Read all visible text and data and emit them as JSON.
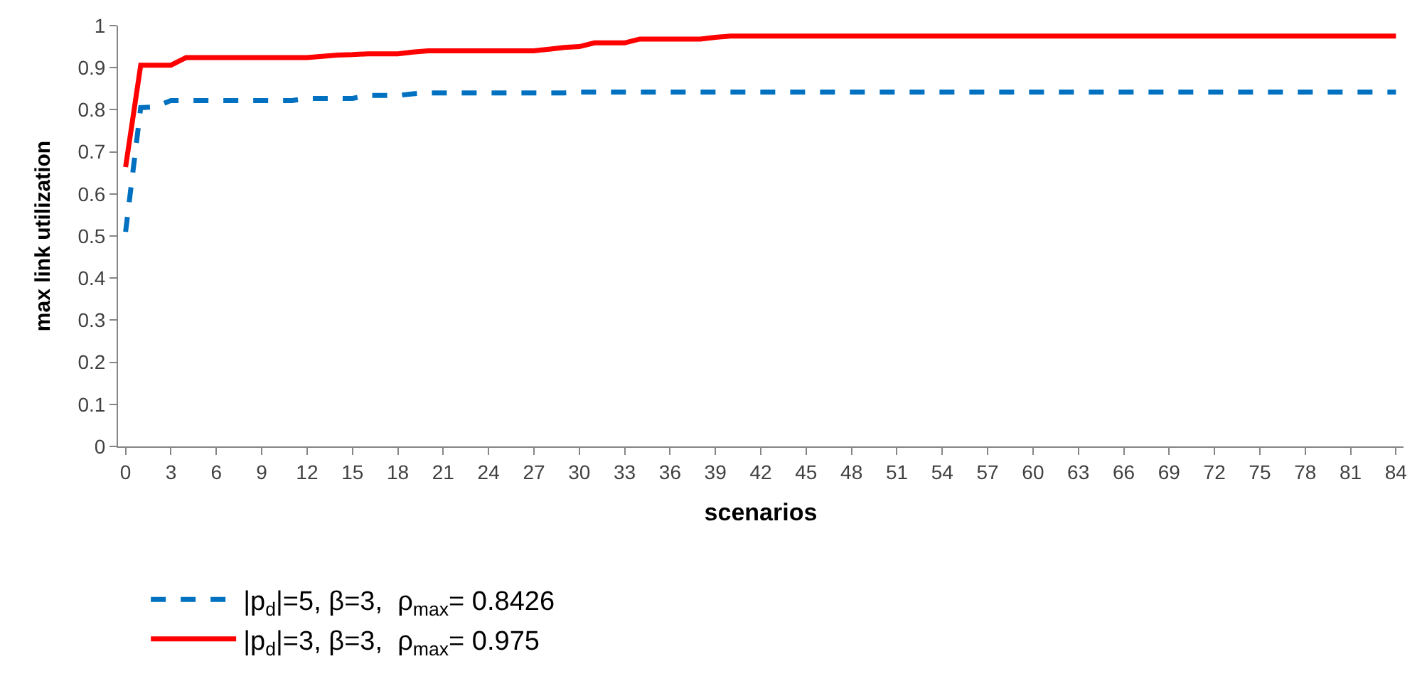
{
  "chart_data": {
    "type": "line",
    "xlabel": "scenarios",
    "ylabel": "max link utilization",
    "x": [
      0,
      1,
      2,
      3,
      4,
      5,
      6,
      7,
      8,
      9,
      10,
      11,
      12,
      13,
      14,
      15,
      16,
      17,
      18,
      19,
      20,
      21,
      22,
      23,
      24,
      25,
      26,
      27,
      28,
      29,
      30,
      31,
      32,
      33,
      34,
      35,
      36,
      37,
      38,
      39,
      40,
      41,
      42,
      43,
      44,
      45,
      46,
      47,
      48,
      49,
      50,
      51,
      52,
      53,
      54,
      55,
      56,
      57,
      58,
      59,
      60,
      61,
      62,
      63,
      64,
      65,
      66,
      67,
      68,
      69,
      70,
      71,
      72,
      73,
      74,
      75,
      76,
      77,
      78,
      79,
      80,
      81,
      82,
      83,
      84
    ],
    "xlim": [
      -0.5,
      84.5
    ],
    "xticks": [
      0,
      3,
      6,
      9,
      12,
      15,
      18,
      21,
      24,
      27,
      30,
      33,
      36,
      39,
      42,
      45,
      48,
      51,
      54,
      57,
      60,
      63,
      66,
      69,
      72,
      75,
      78,
      81,
      84
    ],
    "ylim": [
      0,
      1
    ],
    "yticks": [
      0,
      0.1,
      0.2,
      0.3,
      0.4,
      0.5,
      0.6,
      0.7,
      0.8,
      0.9,
      1
    ],
    "legend": "bottom",
    "marker": "none",
    "series": [
      {
        "name": "|p$_{d}$|=5, β=3,  ρ$_{max}$= 0.8426",
        "color": "#0070c0",
        "line_style": "dashed",
        "values": [
          0.51,
          0.805,
          0.807,
          0.822,
          0.822,
          0.822,
          0.822,
          0.822,
          0.822,
          0.822,
          0.822,
          0.822,
          0.827,
          0.827,
          0.827,
          0.827,
          0.834,
          0.834,
          0.834,
          0.838,
          0.84,
          0.84,
          0.84,
          0.84,
          0.84,
          0.84,
          0.84,
          0.84,
          0.84,
          0.84,
          0.842,
          0.842,
          0.842,
          0.842,
          0.842,
          0.842,
          0.842,
          0.842,
          0.842,
          0.842,
          0.842,
          0.842,
          0.842,
          0.842,
          0.842,
          0.842,
          0.842,
          0.842,
          0.842,
          0.842,
          0.842,
          0.842,
          0.842,
          0.842,
          0.842,
          0.842,
          0.842,
          0.842,
          0.842,
          0.842,
          0.842,
          0.842,
          0.842,
          0.842,
          0.842,
          0.842,
          0.842,
          0.842,
          0.842,
          0.842,
          0.842,
          0.842,
          0.842,
          0.842,
          0.842,
          0.842,
          0.842,
          0.842,
          0.842,
          0.842,
          0.842,
          0.842,
          0.842,
          0.842,
          0.842
        ]
      },
      {
        "name": "|p$_{d}$|=3, β=3,  ρ$_{max}$= 0.975",
        "color": "#ff0000",
        "line_style": "solid",
        "values": [
          0.664,
          0.906,
          0.906,
          0.906,
          0.924,
          0.924,
          0.924,
          0.924,
          0.924,
          0.924,
          0.924,
          0.924,
          0.924,
          0.927,
          0.93,
          0.931,
          0.933,
          0.933,
          0.933,
          0.937,
          0.94,
          0.94,
          0.94,
          0.94,
          0.94,
          0.94,
          0.94,
          0.94,
          0.944,
          0.948,
          0.95,
          0.959,
          0.959,
          0.959,
          0.968,
          0.968,
          0.968,
          0.968,
          0.968,
          0.972,
          0.975,
          0.975,
          0.975,
          0.975,
          0.975,
          0.975,
          0.975,
          0.975,
          0.975,
          0.975,
          0.975,
          0.975,
          0.975,
          0.975,
          0.975,
          0.975,
          0.975,
          0.975,
          0.975,
          0.975,
          0.975,
          0.975,
          0.975,
          0.975,
          0.975,
          0.975,
          0.975,
          0.975,
          0.975,
          0.975,
          0.975,
          0.975,
          0.975,
          0.975,
          0.975,
          0.975,
          0.975,
          0.975,
          0.975,
          0.975,
          0.975,
          0.975,
          0.975,
          0.975,
          0.975
        ]
      }
    ]
  }
}
